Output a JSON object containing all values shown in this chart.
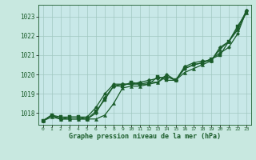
{
  "title": "Graphe pression niveau de la mer (hPa)",
  "fig_bg_color": "#c8e8e0",
  "plot_bg_color": "#c8e8e8",
  "grid_color": "#a0c8c0",
  "line_color": "#1a5c2a",
  "x_ticks": [
    0,
    1,
    2,
    3,
    4,
    5,
    6,
    7,
    8,
    9,
    10,
    11,
    12,
    13,
    14,
    15,
    16,
    17,
    18,
    19,
    20,
    21,
    22,
    23
  ],
  "ylim": [
    1017.4,
    1023.6
  ],
  "yticks": [
    1018,
    1019,
    1020,
    1021,
    1022,
    1023
  ],
  "series": [
    [
      1017.6,
      1017.8,
      1017.7,
      1017.7,
      1017.7,
      1017.7,
      1017.7,
      1017.9,
      1018.5,
      1019.3,
      1019.4,
      1019.4,
      1019.5,
      1019.6,
      1019.9,
      1019.7,
      1020.1,
      1020.3,
      1020.5,
      1020.7,
      1021.3,
      1021.7,
      1022.3,
      1023.2
    ],
    [
      1017.6,
      1017.9,
      1017.7,
      1017.7,
      1017.7,
      1017.7,
      1018.0,
      1018.8,
      1019.4,
      1019.5,
      1019.5,
      1019.6,
      1019.7,
      1019.8,
      1019.9,
      1019.7,
      1020.4,
      1020.6,
      1020.7,
      1020.7,
      1021.4,
      1021.7,
      1022.4,
      1023.3
    ],
    [
      1017.6,
      1017.9,
      1017.8,
      1017.8,
      1017.8,
      1017.7,
      1018.1,
      1018.7,
      1019.4,
      1019.4,
      1019.6,
      1019.5,
      1019.5,
      1019.9,
      1019.7,
      1019.7,
      1020.3,
      1020.5,
      1020.6,
      1020.8,
      1021.0,
      1021.7,
      1022.5,
      1023.2
    ],
    [
      1017.6,
      1017.9,
      1017.7,
      1017.8,
      1017.8,
      1017.8,
      1018.3,
      1019.0,
      1019.5,
      1019.5,
      1019.5,
      1019.5,
      1019.6,
      1019.6,
      1020.0,
      1019.7,
      1020.3,
      1020.5,
      1020.6,
      1020.8,
      1021.1,
      1021.4,
      1022.1,
      1023.3
    ]
  ]
}
